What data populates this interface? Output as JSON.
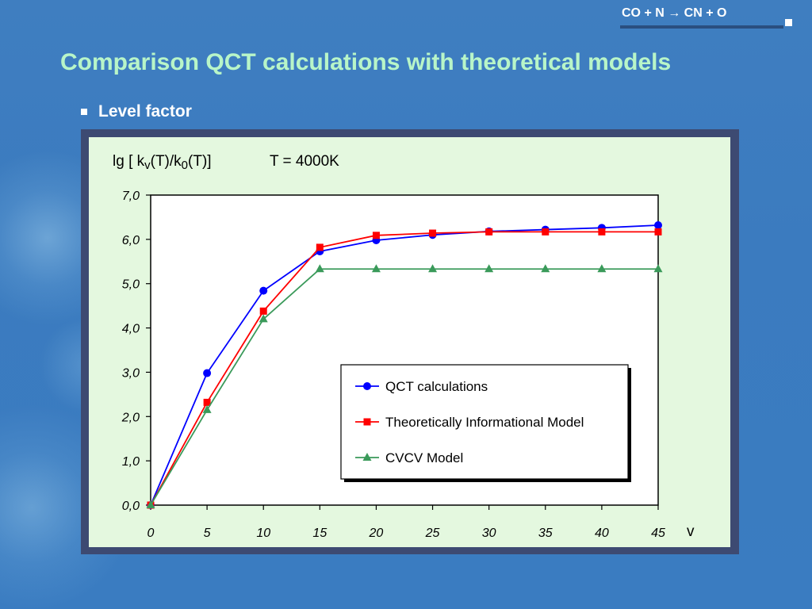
{
  "slide": {
    "subtitle_parts": [
      "CO + N ",
      "→",
      " CN + O"
    ],
    "title": "Comparison QCT calculations with theoretical models",
    "bullet": "Level factor",
    "title_color": "#b8f5c8"
  },
  "chart_data": {
    "type": "line",
    "header": {
      "ylabel_parts": [
        "lg [ k",
        "v",
        "(T)/k",
        "0",
        "(T)]"
      ],
      "temperature": "T = 4000K"
    },
    "xlabel": "v",
    "x": [
      0,
      5,
      10,
      15,
      20,
      25,
      30,
      35,
      40,
      45
    ],
    "xlim": [
      0,
      45
    ],
    "ylim": [
      0,
      7
    ],
    "xticks": [
      0,
      5,
      10,
      15,
      20,
      25,
      30,
      35,
      40,
      45
    ],
    "yticks": [
      "0,0",
      "1,0",
      "2,0",
      "3,0",
      "4,0",
      "5,0",
      "6,0",
      "7,0"
    ],
    "grid": false,
    "legend_position": "bottom-right",
    "series": [
      {
        "name": "QCT calculations",
        "color": "#0000ff",
        "marker": "circle",
        "values": [
          0.0,
          2.98,
          4.84,
          5.73,
          5.98,
          6.1,
          6.18,
          6.22,
          6.26,
          6.32
        ]
      },
      {
        "name": "Theoretically Informational Model",
        "color": "#ff0000",
        "marker": "square",
        "values": [
          0.0,
          2.32,
          4.38,
          5.82,
          6.09,
          6.14,
          6.17,
          6.17,
          6.17,
          6.17
        ]
      },
      {
        "name": "CVCV Model",
        "color": "#3a9a5a",
        "marker": "triangle",
        "values": [
          0.0,
          2.15,
          4.2,
          5.33,
          5.33,
          5.33,
          5.33,
          5.33,
          5.33,
          5.33
        ]
      }
    ]
  }
}
